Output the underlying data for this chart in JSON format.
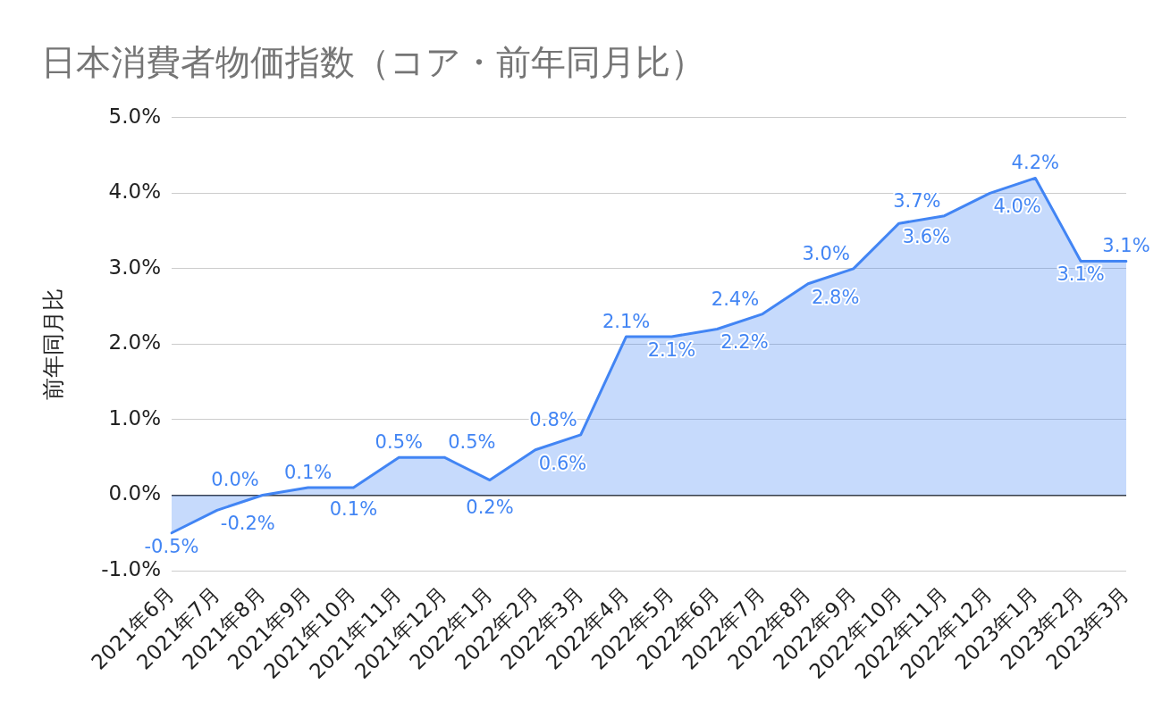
{
  "chart_data": {
    "type": "area",
    "title": "日本消費者物価指数（コア・前年同月比）",
    "ylabel": "前年同月比",
    "categories": [
      "2021年6月",
      "2021年7月",
      "2021年8月",
      "2021年9月",
      "2021年10月",
      "2021年11月",
      "2021年12月",
      "2022年1月",
      "2022年2月",
      "2022年3月",
      "2022年4月",
      "2022年5月",
      "2022年6月",
      "2022年7月",
      "2022年8月",
      "2022年9月",
      "2022年10月",
      "2022年11月",
      "2022年12月",
      "2023年1月",
      "2023年2月",
      "2023年3月"
    ],
    "values": [
      -0.5,
      -0.2,
      0.0,
      0.1,
      0.1,
      0.5,
      0.5,
      0.2,
      0.6,
      0.8,
      2.1,
      2.1,
      2.2,
      2.4,
      2.8,
      3.0,
      3.6,
      3.7,
      4.0,
      4.2,
      3.1,
      3.1
    ],
    "value_labels": [
      "-0.5%",
      "-0.2%",
      "0.0%",
      "0.1%",
      "0.1%",
      "0.5%",
      "0.5%",
      "0.2%",
      "0.6%",
      "0.8%",
      "2.1%",
      "2.1%",
      "2.2%",
      "2.4%",
      "2.8%",
      "3.0%",
      "3.6%",
      "3.7%",
      "4.0%",
      "4.2%",
      "3.1%",
      "3.1%"
    ],
    "color": "#4285f4",
    "ylim": [
      -1.0,
      5.0
    ],
    "yticks": [
      {
        "value": -1.0,
        "label": "-1.0%"
      },
      {
        "value": 0,
        "label": "0.0%"
      },
      {
        "value": 1.0,
        "label": "1.0%"
      },
      {
        "value": 2.0,
        "label": "2.0%"
      },
      {
        "value": 3.0,
        "label": "3.0%"
      },
      {
        "value": 4.0,
        "label": "4.0%"
      },
      {
        "value": 5.0,
        "label": "5.0%"
      }
    ],
    "grid": "y",
    "marker": "none"
  }
}
